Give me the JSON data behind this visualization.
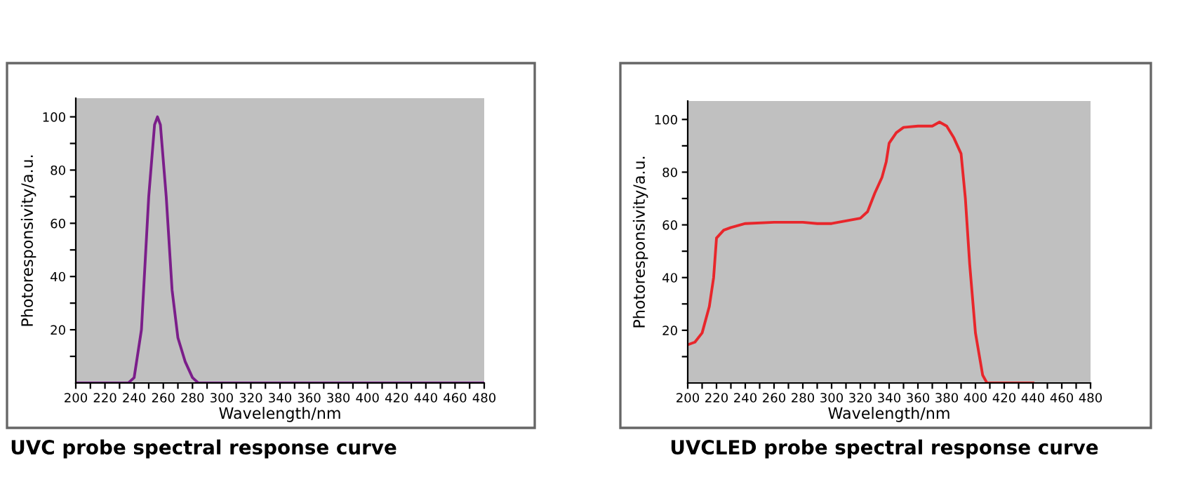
{
  "chart_data": [
    {
      "type": "line",
      "xlabel": "Wavelength/nm",
      "ylabel": "Photoresponsivity/a.u.",
      "annotations": [
        "UVC probe spectral response curve"
      ],
      "series": [
        {
          "color": "#7b1e8a",
          "x": [
            200,
            236,
            240,
            245,
            250,
            254,
            256,
            258,
            262,
            266,
            270,
            275,
            280,
            284,
            480
          ],
          "values": [
            0,
            0,
            2,
            20,
            70,
            97,
            100,
            97,
            70,
            35,
            17,
            8,
            2,
            0,
            0
          ]
        }
      ],
      "xlim": [
        200,
        480
      ],
      "ylim": [
        0,
        107
      ],
      "xticks": [
        200,
        {
          "value": 210,
          "label": null
        },
        220,
        {
          "value": 230,
          "label": null
        },
        240,
        {
          "value": 250,
          "label": null
        },
        260,
        {
          "value": 270,
          "label": null
        },
        280,
        {
          "value": 290,
          "label": null
        },
        300,
        {
          "value": 310,
          "label": null
        },
        320,
        {
          "value": 330,
          "label": null
        },
        340,
        {
          "value": 350,
          "label": null
        },
        360,
        {
          "value": 370,
          "label": null
        },
        380,
        {
          "value": 390,
          "label": null
        },
        400,
        {
          "value": 410,
          "label": null
        },
        420,
        {
          "value": 430,
          "label": null
        },
        440,
        {
          "value": 450,
          "label": null
        },
        460,
        {
          "value": 470,
          "label": null
        },
        480
      ],
      "yticks": [
        {
          "value": 10,
          "label": null
        },
        20,
        {
          "value": 30,
          "label": null
        },
        40,
        {
          "value": 50,
          "label": null
        },
        60,
        {
          "value": 70,
          "label": null
        },
        80,
        {
          "value": 90,
          "label": null
        },
        100
      ],
      "grid": false
    },
    {
      "type": "line",
      "xlabel": "Wavelength/nm",
      "ylabel": "Photoresponsivity/a.u.",
      "annotations": [
        "UVCLED probe spectral response curve"
      ],
      "series": [
        {
          "color": "#e8262b",
          "x": [
            200,
            205,
            210,
            215,
            218,
            220,
            225,
            230,
            240,
            260,
            280,
            290,
            300,
            310,
            320,
            325,
            330,
            335,
            338,
            340,
            345,
            350,
            360,
            370,
            375,
            380,
            385,
            390,
            393,
            396,
            400,
            405,
            408,
            440
          ],
          "values": [
            14.5,
            15.5,
            19,
            29,
            40,
            55,
            58,
            59,
            60.5,
            61,
            61,
            60.5,
            60.5,
            61.5,
            62.5,
            65,
            72,
            78,
            84,
            91,
            95,
            97,
            97.5,
            97.5,
            99,
            97.5,
            93,
            87,
            70,
            45,
            19,
            3,
            0,
            0
          ]
        }
      ],
      "xlim": [
        200,
        480
      ],
      "ylim": [
        0,
        107
      ],
      "xticks": [
        200,
        {
          "value": 210,
          "label": null
        },
        220,
        {
          "value": 230,
          "label": null
        },
        240,
        {
          "value": 250,
          "label": null
        },
        260,
        {
          "value": 270,
          "label": null
        },
        280,
        {
          "value": 290,
          "label": null
        },
        300,
        {
          "value": 310,
          "label": null
        },
        320,
        {
          "value": 330,
          "label": null
        },
        340,
        {
          "value": 350,
          "label": null
        },
        360,
        {
          "value": 370,
          "label": null
        },
        380,
        {
          "value": 390,
          "label": null
        },
        400,
        {
          "value": 410,
          "label": null
        },
        420,
        {
          "value": 430,
          "label": null
        },
        440,
        {
          "value": 450,
          "label": null
        },
        460,
        {
          "value": 470,
          "label": null
        },
        480
      ],
      "yticks": [
        {
          "value": 10,
          "label": null
        },
        20,
        {
          "value": 30,
          "label": null
        },
        40,
        {
          "value": 50,
          "label": null
        },
        60,
        {
          "value": 70,
          "label": null
        },
        80,
        {
          "value": 90,
          "label": null
        },
        100
      ],
      "grid": false
    }
  ]
}
